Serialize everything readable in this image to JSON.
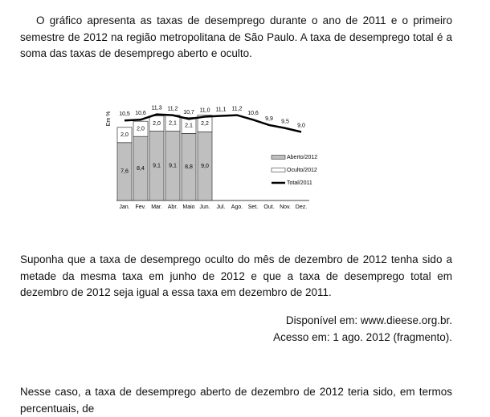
{
  "paragraphs": [
    "O gráfico apresenta as taxas de desemprego durante o ano de 2011 e o primeiro semestre de 2012 na região metropolitana de São Paulo. A taxa de desemprego total é a soma das taxas de desemprego aberto e oculto.",
    "Suponha que a taxa de desemprego oculto do mês de dezembro de 2012 tenha sido a metade da mesma taxa em junho de 2012 e que a taxa de desemprego total em dezembro de 2012 seja igual a essa taxa em dezembro de 2011."
  ],
  "source": [
    "Disponível em: www.dieese.org.br.",
    "Acesso em: 1 ago. 2012 (fragmento)."
  ],
  "question": "Nesse caso, a taxa de desemprego aberto de dezembro de 2012 teria sido, em termos percentuais, de",
  "chart": {
    "type": "bar",
    "y_label": "Em %",
    "categories": [
      "Jan.",
      "Fev.",
      "Mar.",
      "Abr.",
      "Maio",
      "Jun.",
      "Jul.",
      "Ago.",
      "Set.",
      "Out.",
      "Nov.",
      "Dez."
    ],
    "ylim": [
      0,
      12
    ],
    "series": [
      {
        "name": "Aberto/2012",
        "color": "#bfbfbf",
        "values": [
          7.6,
          8.4,
          9.1,
          9.1,
          8.8,
          9.0,
          null,
          null,
          null,
          null,
          null,
          null
        ],
        "value_labels": [
          "7,6",
          "8,4",
          "9,1",
          "9,1",
          "8,8",
          "9,0",
          null,
          null,
          null,
          null,
          null,
          null
        ]
      },
      {
        "name": "Oculto/2012",
        "color": "#ffffff",
        "values": [
          2.0,
          2.0,
          2.0,
          2.1,
          2.1,
          2.2,
          null,
          null,
          null,
          null,
          null,
          null
        ],
        "value_labels": [
          "2,0",
          "2,0",
          "2,0",
          "2,1",
          "2,1",
          "2,2",
          null,
          null,
          null,
          null,
          null,
          null
        ]
      },
      {
        "name": "Total/2011",
        "type": "line",
        "color": "#000000",
        "values": [
          10.5,
          10.6,
          11.3,
          11.2,
          10.7,
          11.0,
          11.1,
          11.2,
          10.6,
          9.9,
          9.5,
          9.0
        ],
        "value_labels": [
          "10,5",
          "10,6",
          "11,3",
          "11,2",
          "10,7",
          "11,0",
          "11,1",
          "11,2",
          "10,6",
          "9,9",
          "9,5",
          "9,0"
        ]
      }
    ]
  }
}
